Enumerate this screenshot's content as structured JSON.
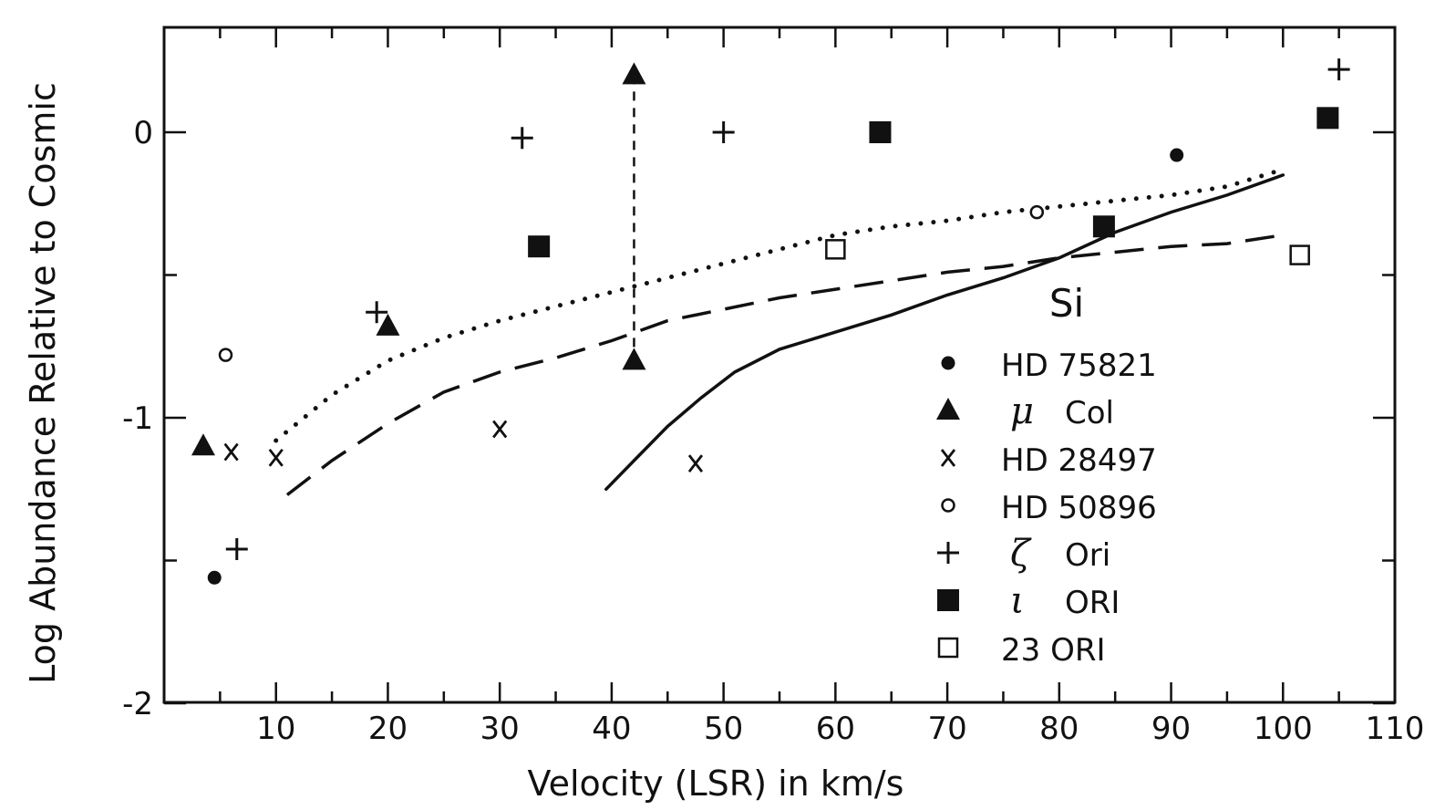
{
  "chart_data": {
    "type": "scatter",
    "title": "",
    "element_label": "Si",
    "xlabel": "Velocity (LSR) in km/s",
    "ylabel": "Log Abundance Relative to Cosmic",
    "xlim": [
      0,
      110
    ],
    "ylim": [
      -2,
      0.35
    ],
    "x_ticks": [
      10,
      20,
      30,
      40,
      50,
      60,
      70,
      80,
      90,
      100,
      110
    ],
    "y_ticks": [
      {
        "value": 0,
        "label": "0"
      },
      {
        "value": -1,
        "label": "-1"
      },
      {
        "value": -2,
        "label": "-2"
      }
    ],
    "legend_position": "right-center",
    "series": [
      {
        "name": "HD 75821",
        "legend_prefix": "",
        "marker": "filled-circle",
        "points": [
          [
            4.5,
            -1.56
          ],
          [
            90.5,
            -0.08
          ]
        ]
      },
      {
        "name": "Col",
        "legend_prefix": "μ",
        "marker": "filled-triangle",
        "points": [
          [
            3.5,
            -1.1
          ],
          [
            20,
            -0.68
          ],
          [
            42,
            0.2
          ],
          [
            42,
            -0.8
          ]
        ]
      },
      {
        "name": "HD 28497",
        "legend_prefix": "",
        "marker": "x",
        "points": [
          [
            6,
            -1.12
          ],
          [
            10,
            -1.14
          ],
          [
            30,
            -1.04
          ],
          [
            47.5,
            -1.16
          ]
        ]
      },
      {
        "name": "HD 50896",
        "legend_prefix": "",
        "marker": "open-circle",
        "points": [
          [
            5.5,
            -0.78
          ],
          [
            78,
            -0.28
          ]
        ]
      },
      {
        "name": "Ori",
        "legend_prefix": "ζ",
        "marker": "plus",
        "points": [
          [
            6.5,
            -1.46
          ],
          [
            19,
            -0.63
          ],
          [
            32,
            -0.02
          ],
          [
            50,
            0.0
          ],
          [
            105,
            0.22
          ]
        ]
      },
      {
        "name": "ORI",
        "legend_prefix": "ι",
        "marker": "filled-square",
        "points": [
          [
            33.5,
            -0.4
          ],
          [
            64,
            0.0
          ],
          [
            84,
            -0.33
          ],
          [
            104,
            0.05
          ]
        ]
      },
      {
        "name": "23 ORI",
        "legend_prefix": "",
        "marker": "open-square",
        "points": [
          [
            60,
            -0.41
          ],
          [
            101.5,
            -0.43
          ]
        ]
      }
    ],
    "range_lines": [
      {
        "style": "dashed-vertical",
        "points": [
          [
            42,
            0.2
          ],
          [
            42,
            -0.8
          ]
        ]
      }
    ],
    "curves": [
      {
        "style": "dotted",
        "points": [
          [
            10,
            -1.08
          ],
          [
            15,
            -0.92
          ],
          [
            20,
            -0.8
          ],
          [
            25,
            -0.72
          ],
          [
            30,
            -0.66
          ],
          [
            35,
            -0.61
          ],
          [
            40,
            -0.56
          ],
          [
            45,
            -0.51
          ],
          [
            50,
            -0.46
          ],
          [
            55,
            -0.41
          ],
          [
            60,
            -0.36
          ],
          [
            65,
            -0.33
          ],
          [
            70,
            -0.31
          ],
          [
            75,
            -0.28
          ],
          [
            80,
            -0.26
          ],
          [
            85,
            -0.24
          ],
          [
            90,
            -0.22
          ],
          [
            95,
            -0.19
          ],
          [
            100,
            -0.13
          ]
        ]
      },
      {
        "style": "dashed",
        "points": [
          [
            11,
            -1.27
          ],
          [
            15,
            -1.15
          ],
          [
            20,
            -1.02
          ],
          [
            25,
            -0.91
          ],
          [
            30,
            -0.84
          ],
          [
            35,
            -0.79
          ],
          [
            40,
            -0.73
          ],
          [
            45,
            -0.66
          ],
          [
            50,
            -0.62
          ],
          [
            55,
            -0.58
          ],
          [
            60,
            -0.55
          ],
          [
            65,
            -0.52
          ],
          [
            70,
            -0.49
          ],
          [
            75,
            -0.47
          ],
          [
            80,
            -0.44
          ],
          [
            85,
            -0.42
          ],
          [
            90,
            -0.4
          ],
          [
            95,
            -0.39
          ],
          [
            100,
            -0.36
          ]
        ]
      },
      {
        "style": "solid",
        "points": [
          [
            39.5,
            -1.25
          ],
          [
            42,
            -1.15
          ],
          [
            45,
            -1.03
          ],
          [
            48,
            -0.93
          ],
          [
            51,
            -0.84
          ],
          [
            55,
            -0.76
          ],
          [
            60,
            -0.7
          ],
          [
            65,
            -0.64
          ],
          [
            70,
            -0.57
          ],
          [
            75,
            -0.51
          ],
          [
            80,
            -0.44
          ],
          [
            85,
            -0.35
          ],
          [
            90,
            -0.28
          ],
          [
            95,
            -0.22
          ],
          [
            100,
            -0.15
          ]
        ]
      }
    ]
  }
}
